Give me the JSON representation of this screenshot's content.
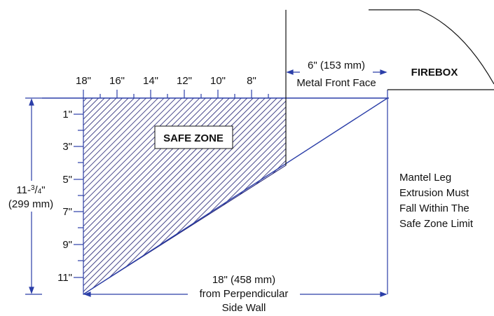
{
  "diagram": {
    "top_ruler_labels": [
      "18\"",
      "16\"",
      "14\"",
      "12\"",
      "10\"",
      "8\""
    ],
    "left_ruler_labels": [
      "1\"",
      "3\"",
      "5\"",
      "7\"",
      "9\"",
      "11\""
    ],
    "safe_zone_label": "SAFE ZONE",
    "firebox_label": "FIREBOX",
    "metal_face": {
      "measure": "6\" (153 mm)",
      "label": "Metal Front Face"
    },
    "height_dim": {
      "whole": "11-",
      "num": "3",
      "slash": "/",
      "den": "4",
      "inch": "\"",
      "metric": "(299 mm)"
    },
    "width_dim": {
      "line1": "18\" (458 mm)",
      "line2": "from Perpendicular",
      "line3": "Side Wall"
    },
    "note_lines": [
      "Mantel Leg",
      "Extrusion Must",
      "Fall Within The",
      "Safe Zone Limit"
    ],
    "colors": {
      "accent_line": "#2b3ea8",
      "ink": "#111111",
      "hatch": "#1a1a6e"
    }
  }
}
